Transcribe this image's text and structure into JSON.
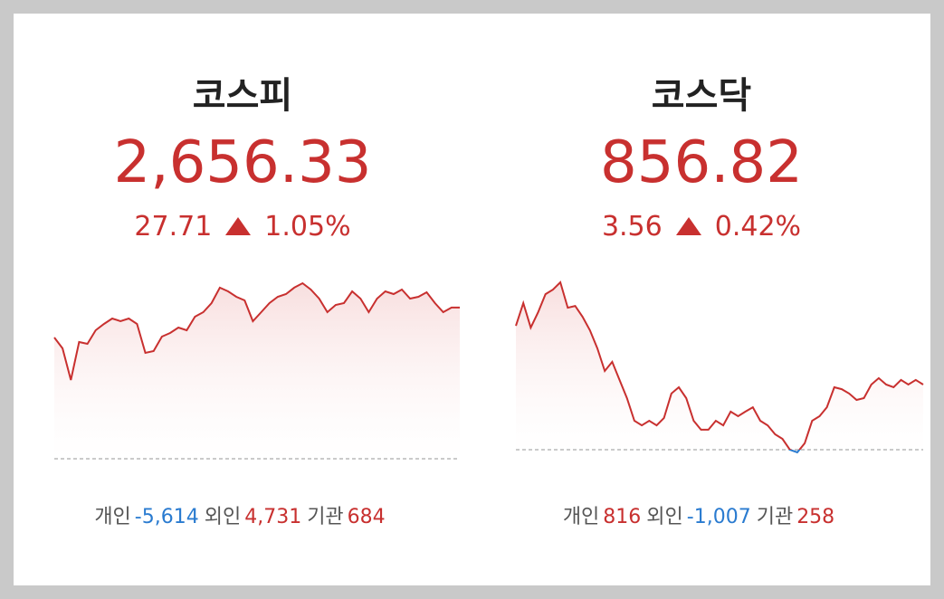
{
  "markets": [
    {
      "name": "코스피",
      "value": {
        "value": 2656.33,
        "label": "2,656.33"
      },
      "change": 27.71,
      "change_pct": "1.05%",
      "chart": {
        "values": [
          2650.85,
          2648.86,
          2643.05,
          2650.02,
          2649.69,
          2652.18,
          2653.34,
          2654.33,
          2653.84,
          2654.33,
          2653.34,
          2648.03,
          2648.36,
          2651.02,
          2651.68,
          2652.68,
          2652.18,
          2654.67,
          2655.5,
          2657.15,
          2659.98,
          2659.31,
          2658.32,
          2657.65,
          2653.84,
          2655.5,
          2657.15,
          2658.32,
          2658.81,
          2659.98,
          2660.8,
          2659.64,
          2657.98,
          2655.5,
          2656.82,
          2657.15,
          2659.31,
          2657.98,
          2655.5,
          2657.98,
          2659.31,
          2658.81,
          2659.64,
          2657.98,
          2658.32,
          2659.14,
          2657.15,
          2655.5,
          2656.33,
          2656.33
        ]
      },
      "investors": [
        {
          "label": "개인",
          "value": "-5,614"
        },
        {
          "label": "외인",
          "value": "4,731"
        },
        {
          "label": "기관",
          "value": "684"
        }
      ]
    },
    {
      "name": "코스닥",
      "value": {
        "value": 856.82,
        "label": "856.82"
      },
      "change": 3.56,
      "change_pct": "0.42%",
      "chart": {
        "values": [
          860.03,
          861.27,
          859.93,
          860.77,
          861.76,
          862.01,
          862.41,
          861.02,
          861.12,
          860.53,
          859.79,
          858.8,
          857.56,
          858.06,
          857.07,
          856.08,
          854.84,
          854.59,
          854.84,
          854.59,
          854.99,
          856.33,
          856.67,
          856.08,
          854.84,
          854.35,
          854.35,
          854.84,
          854.59,
          855.34,
          855.09,
          855.34,
          855.58,
          854.84,
          854.59,
          854.1,
          853.85,
          853.26,
          853.11,
          853.61,
          854.84,
          855.09,
          855.58,
          856.67,
          856.57,
          856.33,
          855.98,
          856.08,
          856.82,
          857.17,
          856.82,
          856.67,
          857.07,
          856.82,
          857.07,
          856.82
        ]
      },
      "investors": [
        {
          "label": "개인",
          "value": "816"
        },
        {
          "label": "외인",
          "value": "-1,007"
        },
        {
          "label": "기관",
          "value": "258"
        }
      ]
    }
  ]
}
